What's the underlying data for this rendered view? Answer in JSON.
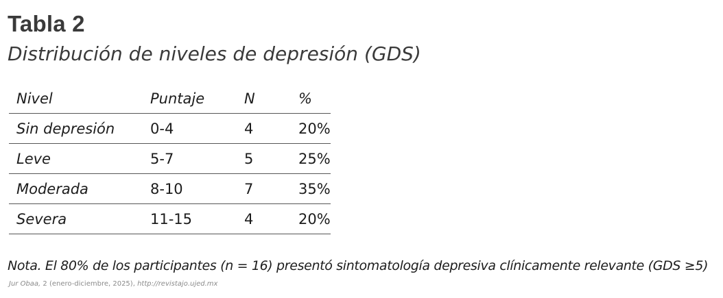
{
  "table": {
    "number": "Tabla 2",
    "caption": "Distribución de niveles de depresión (GDS)",
    "headers": {
      "nivel": "Nivel",
      "puntaje": "Puntaje",
      "n": "N",
      "percent": "%"
    },
    "rows": [
      {
        "nivel": "Sin depresión",
        "puntaje": "0-4",
        "n": "4",
        "percent": "20%"
      },
      {
        "nivel": "Leve",
        "puntaje": "5-7",
        "n": "5",
        "percent": "25%"
      },
      {
        "nivel": "Moderada",
        "puntaje": "8-10",
        "n": "7",
        "percent": "35%"
      },
      {
        "nivel": "Severa",
        "puntaje": "11-15",
        "n": "4",
        "percent": "20%"
      }
    ]
  },
  "note": "Nota. El 80% de los participantes (n = 16) presentó sintomatología depresiva clínicamente relevante (GDS ≥5)",
  "footer": {
    "journal": "Jur Obaa,",
    "issue": " 2 (enero-diciembre, 2025), ",
    "url": "http://revistajo.ujed.mx"
  }
}
